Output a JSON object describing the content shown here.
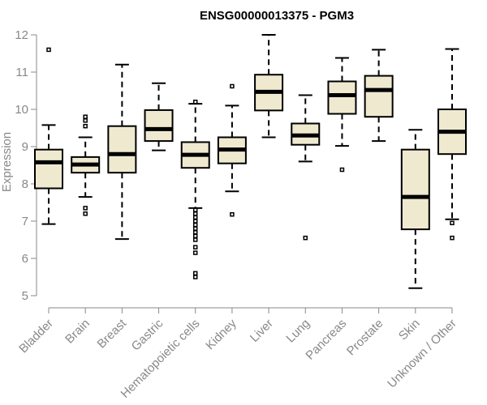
{
  "chart_data": {
    "type": "boxplot",
    "title": "ENSG00000013375 - PGM3",
    "ylabel": "Expression",
    "ylim": [
      5,
      12
    ],
    "yticks": [
      5,
      6,
      7,
      8,
      9,
      10,
      11,
      12
    ],
    "box_color": "#efe9d0",
    "categories": [
      "Bladder",
      "Brain",
      "Breast",
      "Gastric",
      "Hematopoietic cells",
      "Kidney",
      "Liver",
      "Lung",
      "Pancreas",
      "Prostate",
      "Skin",
      "Unknown / Other"
    ],
    "boxes": [
      {
        "whislo": 6.92,
        "q1": 7.88,
        "med": 8.58,
        "q3": 8.92,
        "whishi": 9.58,
        "fliers": [
          11.6
        ]
      },
      {
        "whislo": 7.65,
        "q1": 8.3,
        "med": 8.52,
        "q3": 8.72,
        "whishi": 9.25,
        "fliers": [
          9.8,
          9.7,
          9.55,
          7.35,
          7.2
        ]
      },
      {
        "whislo": 6.52,
        "q1": 8.3,
        "med": 8.8,
        "q3": 9.55,
        "whishi": 11.2,
        "fliers": []
      },
      {
        "whislo": 8.9,
        "q1": 9.15,
        "med": 9.47,
        "q3": 9.98,
        "whishi": 10.7,
        "fliers": []
      },
      {
        "whislo": 7.35,
        "q1": 8.43,
        "med": 8.78,
        "q3": 9.12,
        "whishi": 10.15,
        "fliers": [
          10.2,
          7.3,
          7.2,
          7.1,
          7.0,
          6.9,
          6.8,
          6.7,
          6.6,
          6.5,
          6.3,
          6.15,
          5.6,
          5.5
        ]
      },
      {
        "whislo": 7.8,
        "q1": 8.55,
        "med": 8.92,
        "q3": 9.25,
        "whishi": 10.1,
        "fliers": [
          10.62,
          7.18
        ]
      },
      {
        "whislo": 9.25,
        "q1": 9.97,
        "med": 10.47,
        "q3": 10.93,
        "whishi": 12.0,
        "fliers": []
      },
      {
        "whislo": 8.6,
        "q1": 9.05,
        "med": 9.3,
        "q3": 9.62,
        "whishi": 10.38,
        "fliers": [
          6.55
        ]
      },
      {
        "whislo": 9.02,
        "q1": 9.88,
        "med": 10.38,
        "q3": 10.75,
        "whishi": 11.38,
        "fliers": [
          8.38
        ]
      },
      {
        "whislo": 9.15,
        "q1": 9.8,
        "med": 10.52,
        "q3": 10.9,
        "whishi": 11.6,
        "fliers": []
      },
      {
        "whislo": 5.2,
        "q1": 6.78,
        "med": 7.65,
        "q3": 8.92,
        "whishi": 9.45,
        "fliers": []
      },
      {
        "whislo": 7.05,
        "q1": 8.8,
        "med": 9.4,
        "q3": 10.0,
        "whishi": 11.62,
        "fliers": [
          6.95,
          6.55
        ]
      }
    ]
  }
}
